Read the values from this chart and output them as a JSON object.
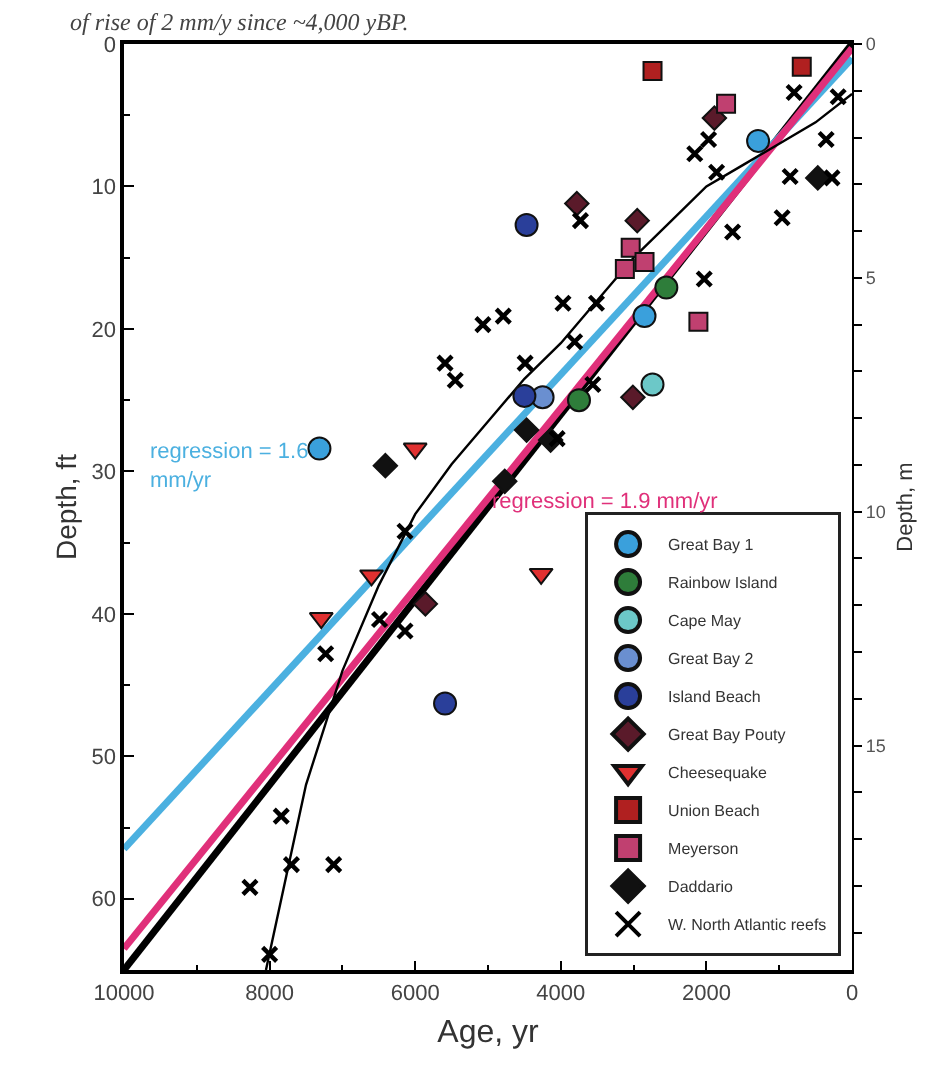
{
  "chart_data": {
    "type": "scatter",
    "title": "of rise of 2 mm/y since ~4,000 yBP.",
    "xlabel": "Age, yr",
    "ylabel": "Depth, ft",
    "y2label": "Depth, m",
    "xlim": [
      10000,
      0
    ],
    "xticks": [
      10000,
      {
        "value": 9000,
        "label": null
      },
      8000,
      {
        "value": 7000,
        "label": null
      },
      6000,
      {
        "value": 5000,
        "label": null
      },
      4000,
      {
        "value": 3000,
        "label": null
      },
      2000,
      {
        "value": 1000,
        "label": null
      },
      0
    ],
    "ylim": [
      65,
      0
    ],
    "yticks": [
      0,
      {
        "value": 5,
        "label": null
      },
      10,
      {
        "value": 15,
        "label": null
      },
      20,
      {
        "value": 25,
        "label": null
      },
      30,
      {
        "value": 35,
        "label": null
      },
      40,
      {
        "value": 45,
        "label": null
      },
      50,
      {
        "value": 55,
        "label": null
      },
      60
    ],
    "y2lim": [
      19.8,
      0
    ],
    "y2ticks": [
      0,
      {
        "value": 1,
        "label": null
      },
      {
        "value": 2,
        "label": null
      },
      {
        "value": 3,
        "label": null
      },
      {
        "value": 4,
        "label": null
      },
      5,
      {
        "value": 6,
        "label": null
      },
      {
        "value": 7,
        "label": null
      },
      {
        "value": 8,
        "label": null
      },
      {
        "value": 9,
        "label": null
      },
      10,
      {
        "value": 11,
        "label": null
      },
      {
        "value": 12,
        "label": null
      },
      {
        "value": 13,
        "label": null
      },
      {
        "value": 14,
        "label": null
      },
      15,
      {
        "value": 16,
        "label": null
      },
      {
        "value": 17,
        "label": null
      },
      {
        "value": 18,
        "label": null
      },
      {
        "value": 19,
        "label": null
      }
    ],
    "grid": false,
    "legend": "bottom right",
    "annotations": [
      "regression = 1.6\nmm/yr",
      "regression = 1.9 mm/yr"
    ],
    "series": [
      {
        "type": "line",
        "color": "#000000",
        "x": [
          10000,
          0
        ],
        "values": [
          65,
          0
        ],
        "line_style": "solid",
        "marker": "none"
      },
      {
        "type": "line",
        "color": "#4bb0e0",
        "x": [
          10000,
          0
        ],
        "values": [
          56.5,
          1
        ],
        "line_style": "solid",
        "marker": "none"
      },
      {
        "type": "line",
        "color": "#e0307a",
        "x": [
          10000,
          0
        ],
        "values": [
          63.5,
          0.3
        ],
        "line_style": "solid",
        "marker": "none"
      },
      {
        "type": "line",
        "color": "#000000",
        "x": [
          8050,
          7500,
          7000,
          6500,
          6000,
          5500,
          5000,
          4500,
          4000,
          3500,
          3000,
          2500,
          2000,
          1500,
          1000,
          500,
          0
        ],
        "values": [
          65,
          52,
          44,
          38,
          33,
          29.5,
          26.5,
          23.5,
          21,
          18,
          15,
          12.5,
          10,
          8.5,
          7,
          5.5,
          3.5
        ],
        "line_style": "solid",
        "marker": "none"
      },
      {
        "name": "Great Bay 1",
        "type": "scatter",
        "marker": "circle",
        "color": "#3aa0dc",
        "x": [
          7315,
          2850,
          1290
        ],
        "values": [
          28.4,
          19.1,
          6.8
        ]
      },
      {
        "name": "Rainbow Island",
        "type": "scatter",
        "marker": "circle",
        "color": "#2e7d3a",
        "x": [
          2550,
          3750
        ],
        "values": [
          17.1,
          25.0
        ]
      },
      {
        "name": "Cape May",
        "type": "scatter",
        "marker": "circle",
        "color": "#6cc8c8",
        "x": [
          2740
        ],
        "values": [
          23.9
        ]
      },
      {
        "name": "Great Bay 2",
        "type": "scatter",
        "marker": "circle",
        "color": "#6a8fd0",
        "x": [
          4250
        ],
        "values": [
          24.8
        ]
      },
      {
        "name": "Island Beach",
        "type": "scatter",
        "marker": "circle",
        "color": "#2a3f9a",
        "x": [
          4470,
          4500,
          5590
        ],
        "values": [
          12.7,
          24.7,
          46.3
        ]
      },
      {
        "name": "Great Bay Pouty",
        "type": "scatter",
        "marker": "diamond",
        "color": "#5a1a2a",
        "x": [
          3780,
          2950,
          3010,
          1890,
          5860
        ],
        "values": [
          11.2,
          12.4,
          24.8,
          5.2,
          39.3
        ]
      },
      {
        "name": "Cheesequake",
        "type": "scatter",
        "marker": "triangle",
        "color": "#e03030",
        "x": [
          6000,
          7290,
          6600,
          4270
        ],
        "values": [
          28.4,
          40.3,
          37.3,
          37.2
        ]
      },
      {
        "name": "Union Beach",
        "type": "scatter",
        "marker": "square",
        "color": "#b02020",
        "x": [
          2740,
          690
        ],
        "values": [
          1.9,
          1.6
        ]
      },
      {
        "name": "Meyerson",
        "type": "scatter",
        "marker": "square",
        "color": "#c04070",
        "x": [
          1730,
          3040,
          3120,
          2850,
          2110
        ],
        "values": [
          4.2,
          14.3,
          15.8,
          15.3,
          19.5
        ]
      },
      {
        "name": "Daddario",
        "type": "scatter",
        "marker": "diamond",
        "color": "#111111",
        "x": [
          6410,
          4470,
          4140,
          470,
          4770
        ],
        "values": [
          29.6,
          27.1,
          27.8,
          9.4,
          30.7
        ]
      },
      {
        "name": "W. North Atlantic reefs",
        "type": "scatter",
        "marker": "cross",
        "color": "#000000",
        "x": [
          795,
          190,
          355,
          1970,
          2160,
          1860,
          850,
          275,
          960,
          1640,
          3730,
          2030,
          3970,
          3510,
          3810,
          4490,
          3560,
          4050,
          5070,
          4790,
          5590,
          5450,
          6140,
          7230,
          6490,
          6140,
          7840,
          7700,
          7120,
          8270,
          8000
        ],
        "values": [
          3.4,
          3.7,
          6.7,
          6.7,
          7.7,
          9.0,
          9.3,
          9.4,
          12.2,
          13.2,
          12.4,
          16.5,
          18.2,
          18.2,
          20.9,
          22.4,
          23.9,
          27.7,
          19.7,
          19.1,
          22.4,
          23.6,
          34.2,
          42.8,
          40.4,
          41.2,
          54.2,
          57.6,
          57.6,
          59.2,
          63.9
        ]
      }
    ]
  }
}
